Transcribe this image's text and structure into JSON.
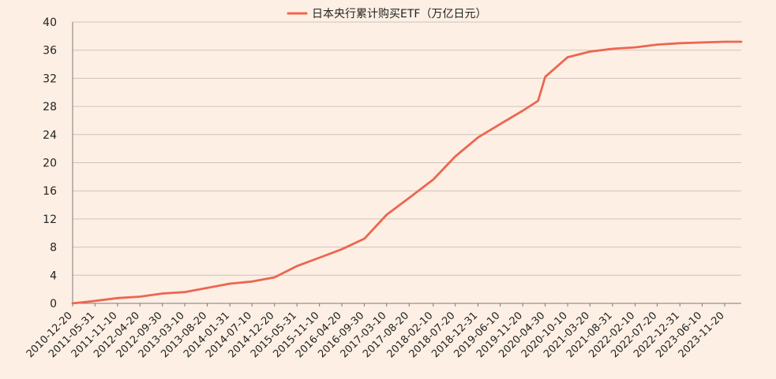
{
  "colors": {
    "background": "#fdefe4",
    "line": "#ec6650",
    "grid": "#cfc3ba",
    "axis": "#7a7a7a",
    "text": "#222222"
  },
  "legend": {
    "position": "top-center"
  },
  "chart_data": {
    "type": "line",
    "title": "",
    "xlabel": "",
    "ylabel": "",
    "ylim": [
      0,
      40
    ],
    "yticks": [
      0,
      4,
      8,
      12,
      16,
      20,
      24,
      28,
      32,
      36,
      40
    ],
    "grid": "horizontal",
    "x_tick_labels": [
      "2010-12-20",
      "2011-05-31",
      "2011-11-10",
      "2012-04-20",
      "2012-09-30",
      "2013-03-10",
      "2013-08-20",
      "2014-01-31",
      "2014-07-10",
      "2014-12-20",
      "2015-05-31",
      "2015-11-10",
      "2016-04-20",
      "2016-09-30",
      "2017-03-10",
      "2017-08-20",
      "2018-02-10",
      "2018-07-20",
      "2018-12-31",
      "2019-06-10",
      "2019-11-20",
      "2020-04-30",
      "2020-10-10",
      "2021-03-20",
      "2021-08-31",
      "2022-02-10",
      "2022-07-20",
      "2022-12-31",
      "2023-06-10",
      "2023-11-20"
    ],
    "series": [
      {
        "name": "日本央行累计购买ETF（万亿日元）",
        "x": [
          "2010-12-20",
          "2011-05-31",
          "2011-11-10",
          "2012-04-20",
          "2012-09-30",
          "2013-03-10",
          "2013-08-20",
          "2014-01-31",
          "2014-07-10",
          "2014-12-20",
          "2015-05-31",
          "2015-11-10",
          "2016-04-20",
          "2016-09-30",
          "2017-03-10",
          "2017-08-20",
          "2018-02-10",
          "2018-07-20",
          "2018-12-31",
          "2019-06-10",
          "2019-11-20",
          "2020-03-10",
          "2020-04-30",
          "2020-10-10",
          "2021-03-20",
          "2021-08-31",
          "2022-02-10",
          "2022-07-20",
          "2022-12-31",
          "2023-06-10",
          "2023-11-20",
          "2024-03-19"
        ],
        "values": [
          0.0,
          0.35,
          0.75,
          0.95,
          1.4,
          1.6,
          2.2,
          2.8,
          3.1,
          3.7,
          5.3,
          6.5,
          7.7,
          9.2,
          12.6,
          15.0,
          17.6,
          20.9,
          23.6,
          25.5,
          27.4,
          28.8,
          32.2,
          35.0,
          35.8,
          36.2,
          36.4,
          36.8,
          37.0,
          37.1,
          37.2,
          37.2
        ]
      }
    ]
  }
}
